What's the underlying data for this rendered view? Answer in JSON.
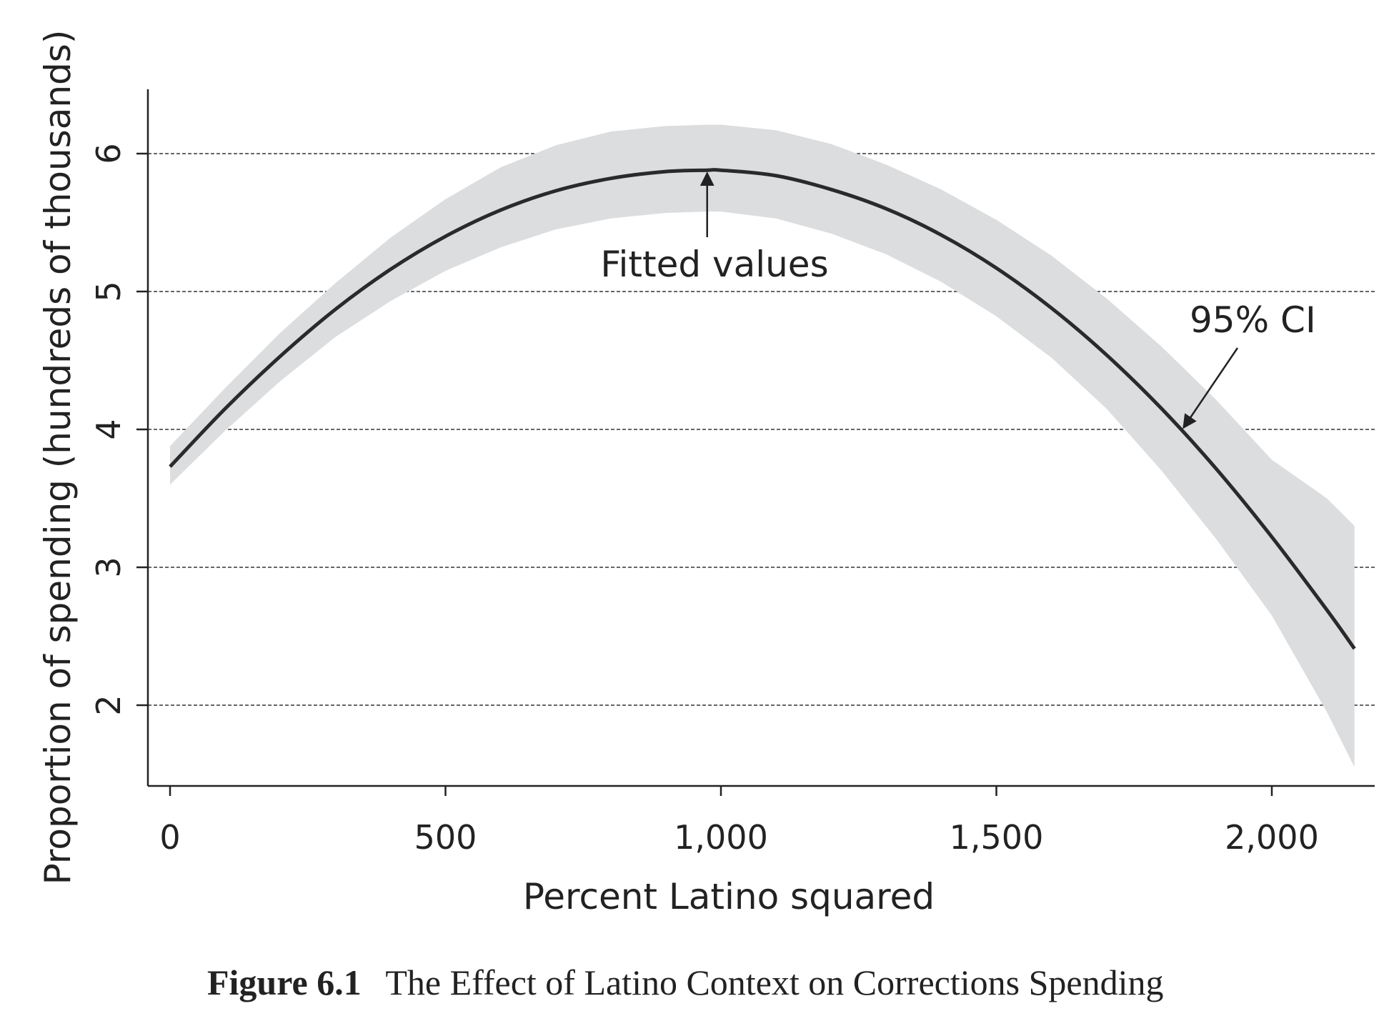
{
  "chart_data": {
    "type": "line",
    "title": "",
    "xlabel": "Percent Latino squared",
    "ylabel": "Proportion of spending (hundreds of thousands)",
    "xlim": [
      -40,
      2180
    ],
    "ylim": [
      1.45,
      6.5
    ],
    "x_ticks": [
      0,
      500,
      1000,
      1500,
      2000
    ],
    "x_tick_labels": [
      "0",
      "500",
      "1,000",
      "1,500",
      "2,000"
    ],
    "y_ticks": [
      2,
      3,
      4,
      5,
      6
    ],
    "y_tick_labels": [
      "2",
      "3",
      "4",
      "5",
      "6"
    ],
    "grid": "horizontal dashed at y ticks",
    "series": [
      {
        "name": "Fitted values",
        "color": "#2a2a2a",
        "x": [
          0,
          100,
          200,
          300,
          400,
          500,
          600,
          700,
          800,
          900,
          975,
          1000,
          1100,
          1200,
          1300,
          1400,
          1500,
          1600,
          1700,
          1800,
          1900,
          2000,
          2100,
          2150
        ],
        "y": [
          3.73,
          4.15,
          4.53,
          4.87,
          5.16,
          5.4,
          5.59,
          5.73,
          5.82,
          5.87,
          5.88,
          5.88,
          5.84,
          5.74,
          5.6,
          5.41,
          5.17,
          4.88,
          4.54,
          4.15,
          3.71,
          3.22,
          2.69,
          2.41
        ]
      }
    ],
    "ci_band": {
      "name": "95% CI",
      "color": "#dcdddf",
      "x": [
        0,
        100,
        200,
        300,
        400,
        500,
        600,
        700,
        800,
        900,
        975,
        1000,
        1100,
        1200,
        1300,
        1400,
        1500,
        1600,
        1700,
        1800,
        1900,
        2000,
        2100,
        2150
      ],
      "upper": [
        3.88,
        4.3,
        4.7,
        5.06,
        5.39,
        5.67,
        5.9,
        6.06,
        6.16,
        6.2,
        6.21,
        6.21,
        6.17,
        6.07,
        5.92,
        5.74,
        5.52,
        5.26,
        4.95,
        4.6,
        4.21,
        3.78,
        3.5,
        3.3
      ],
      "lower": [
        3.6,
        3.99,
        4.35,
        4.67,
        4.93,
        5.15,
        5.32,
        5.45,
        5.53,
        5.57,
        5.58,
        5.58,
        5.53,
        5.42,
        5.27,
        5.07,
        4.82,
        4.52,
        4.15,
        3.7,
        3.2,
        2.65,
        1.95,
        1.55
      ]
    },
    "annotations": [
      {
        "text": "Fitted values",
        "points_to": {
          "x": 975,
          "y": 5.88
        }
      },
      {
        "text": "95% CI",
        "points_to": {
          "x": 1850,
          "y": 4.25
        }
      }
    ]
  },
  "caption": {
    "label": "Figure 6.1",
    "text": "The Effect of Latino Context on Corrections Spending"
  }
}
